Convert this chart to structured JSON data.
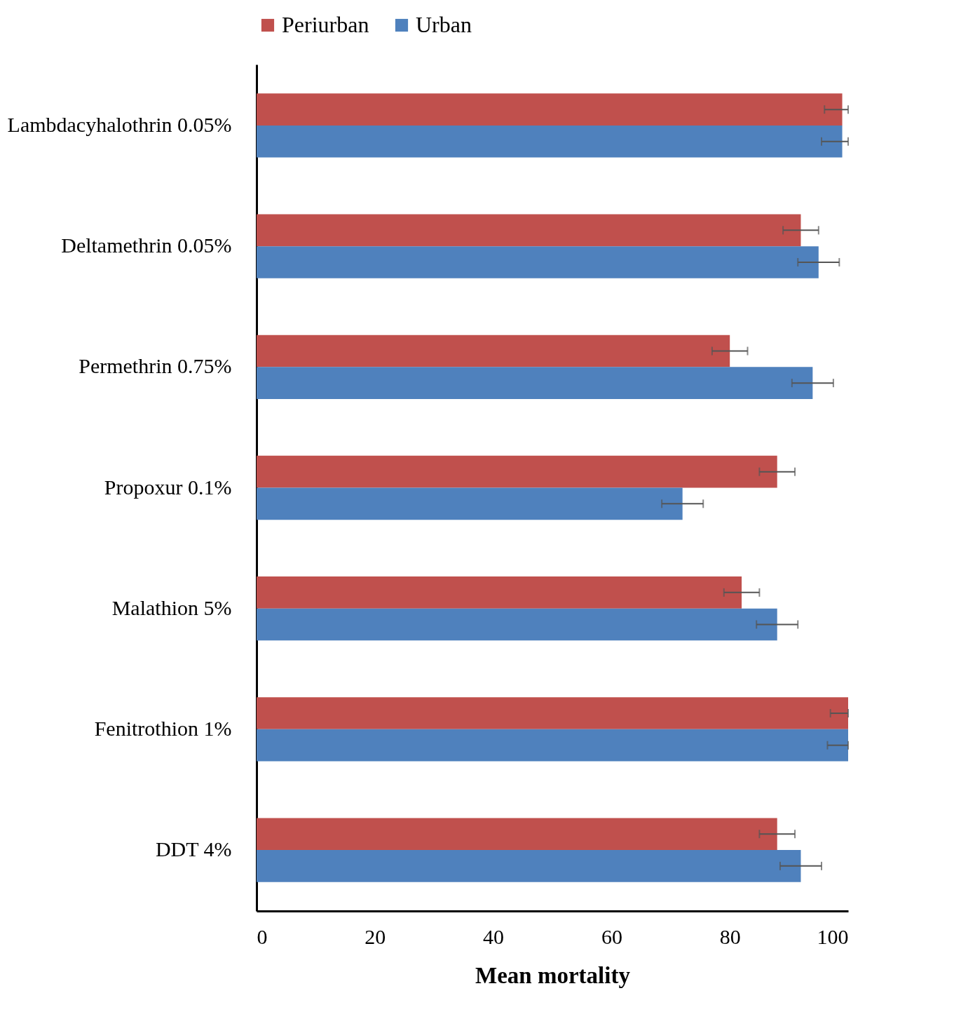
{
  "chart_data": {
    "type": "bar",
    "orientation": "horizontal",
    "xlabel": "Mean mortality",
    "categories": [
      "Lambdacyhalothrin 0.05%",
      "Deltamethrin 0.05%",
      "Permethrin 0.75%",
      "Propoxur 0.1%",
      "Malathion 5%",
      "Fenitrothion 1%",
      "DDT 4%"
    ],
    "series": [
      {
        "name": "Periurban",
        "color": "#c0504d",
        "values": [
          99,
          92,
          80,
          88,
          82,
          100,
          88
        ],
        "errors": [
          [
            96,
            100
          ],
          3,
          3,
          3,
          3,
          [
            97,
            100
          ],
          3
        ]
      },
      {
        "name": "Urban",
        "color": "#4f81bd",
        "values": [
          99,
          95,
          94,
          72,
          88,
          100,
          92
        ],
        "errors": [
          [
            95.5,
            100
          ],
          3.5,
          3.5,
          3.5,
          3.5,
          [
            96.5,
            100
          ],
          3.5
        ]
      }
    ],
    "xlim": [
      0,
      100
    ],
    "xticks": [
      0,
      20,
      40,
      60,
      80,
      100
    ],
    "grid": false,
    "legend": "top"
  }
}
